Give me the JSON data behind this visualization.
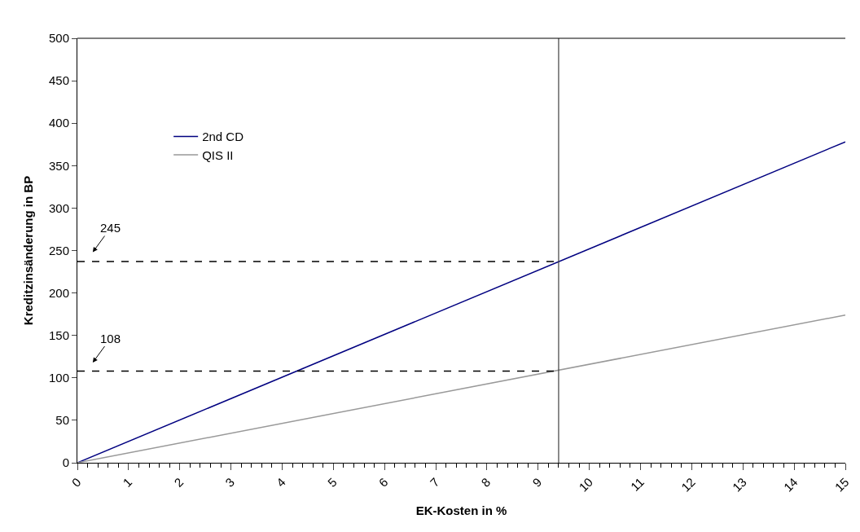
{
  "chart_data": {
    "type": "line",
    "xlabel": "EK-Kosten in %",
    "ylabel": "Kreditzinsänderung in BP",
    "xlim": [
      0,
      15
    ],
    "xticks": [
      0,
      1,
      2,
      3,
      4,
      5,
      6,
      7,
      8,
      9,
      10,
      11,
      12,
      13,
      14,
      15
    ],
    "ylim": [
      0,
      500
    ],
    "yticks": [
      0,
      50,
      100,
      150,
      200,
      250,
      300,
      350,
      400,
      450,
      500
    ],
    "legend": "top left",
    "marker": "none",
    "line_style": "solid",
    "series": [
      {
        "name": "2nd CD",
        "color": "#000080",
        "x": [
          0,
          15
        ],
        "values": [
          0,
          378
        ]
      },
      {
        "name": "QIS II",
        "color": "#999999",
        "x": [
          0,
          15
        ],
        "values": [
          0,
          174
        ]
      },
      {
        "color": "#000000",
        "x": [
          0,
          9.4
        ],
        "values": [
          237,
          237
        ],
        "line_style": "dashed"
      },
      {
        "color": "#000000",
        "x": [
          0,
          9.4
        ],
        "values": [
          108,
          108
        ],
        "line_style": "dashed"
      }
    ],
    "ref_lines": [
      {
        "axis": "x",
        "value": 9.4,
        "color": "#404040"
      }
    ],
    "annotations": [
      "245",
      "108"
    ]
  }
}
